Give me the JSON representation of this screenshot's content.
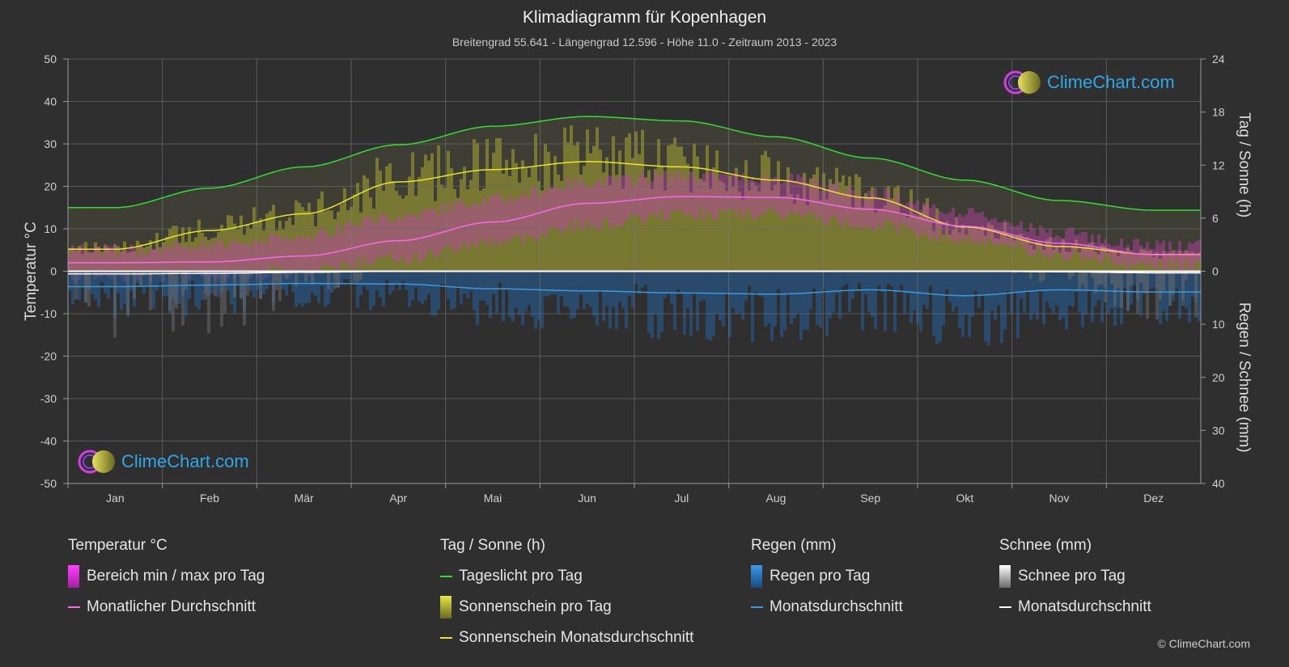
{
  "title": "Klimadiagramm für Kopenhagen",
  "subtitle": "Breitengrad 55.641 - Längengrad 12.596 - Höhe 11.0 - Zeitraum 2013 - 2023",
  "logo_text": "ClimeChart.com",
  "copyright": "© ClimeChart.com",
  "legend": {
    "temperature": {
      "heading": "Temperatur °C",
      "range": "Bereich min / max pro Tag",
      "avg": "Monatlicher Durchschnitt"
    },
    "sun": {
      "heading": "Tag / Sonne (h)",
      "daylight": "Tageslicht pro Tag",
      "sunshine": "Sonnenschein pro Tag",
      "sunshine_avg": "Sonnenschein Monatsdurchschnitt"
    },
    "rain": {
      "heading": "Regen (mm)",
      "per_day": "Regen pro Tag",
      "avg": "Monatsdurchschnitt"
    },
    "snow": {
      "heading": "Schnee (mm)",
      "per_day": "Schnee pro Tag",
      "avg": "Monatsdurchschnitt"
    }
  },
  "colors": {
    "background": "#2f2f2f",
    "daylight": "#33dd33",
    "sunshine_avg": "#e6e62a",
    "sunshine_fill": "#8a8a30",
    "temp_avg": "#ff66ee",
    "temp_range": "#c040b0",
    "rain": "#2a7fd0",
    "rain_avg": "#3a9ae0",
    "snow": "#9a9a9a",
    "snow_avg": "#ffffff"
  },
  "chart_data": {
    "type": "line",
    "categories": [
      "Jan",
      "Feb",
      "Mär",
      "Apr",
      "Mai",
      "Jun",
      "Jul",
      "Aug",
      "Sep",
      "Okt",
      "Nov",
      "Dez"
    ],
    "y_left": {
      "label": "Temperatur °C",
      "ylim": [
        -50,
        50
      ],
      "ticks": [
        50,
        40,
        30,
        20,
        10,
        0,
        -10,
        -20,
        -30,
        -40,
        -50
      ]
    },
    "y_right_top": {
      "label": "Tag / Sonne (h)",
      "ylim": [
        0,
        24
      ],
      "ticks": [
        24,
        18,
        12,
        6,
        0
      ]
    },
    "y_right_bottom": {
      "label": "Regen / Schnee (mm)",
      "ylim": [
        0,
        40
      ],
      "ticks": [
        0,
        10,
        20,
        30,
        40
      ]
    },
    "grid": true,
    "series": [
      {
        "name": "Tageslicht pro Tag",
        "axis": "hours",
        "values": [
          7.2,
          9.4,
          11.8,
          14.3,
          16.4,
          17.5,
          17.0,
          15.2,
          12.8,
          10.3,
          8.0,
          6.9
        ]
      },
      {
        "name": "Sonnenschein Monatsdurchschnitt",
        "axis": "hours",
        "values": [
          2.5,
          4.6,
          6.5,
          10.1,
          11.5,
          12.4,
          11.8,
          10.3,
          8.3,
          5.0,
          2.8,
          1.9
        ]
      },
      {
        "name": "Monatlicher Durchschnitt",
        "axis": "temp",
        "values": [
          2.0,
          2.2,
          3.6,
          7.2,
          11.6,
          16.0,
          17.6,
          17.4,
          14.6,
          10.6,
          6.6,
          3.9
        ]
      },
      {
        "name": "Regen Monatsdurchschnitt",
        "axis": "mm",
        "values": [
          2.9,
          2.6,
          2.3,
          2.4,
          3.3,
          3.7,
          4.1,
          4.3,
          3.5,
          4.6,
          3.5,
          3.9
        ]
      },
      {
        "name": "Schnee Monatsdurchschnitt",
        "axis": "mm",
        "values": [
          0.5,
          0.4,
          0.2,
          0.0,
          0.0,
          0.0,
          0.0,
          0.0,
          0.0,
          0.0,
          0.1,
          0.3
        ]
      }
    ],
    "temp_range_daily": {
      "min": [
        -1.0,
        -1.0,
        0.0,
        3.0,
        7.0,
        11.0,
        13.5,
        13.5,
        11.0,
        7.5,
        4.0,
        1.0
      ],
      "max": [
        5.0,
        6.0,
        8.5,
        13.0,
        17.0,
        21.0,
        22.5,
        22.0,
        18.5,
        13.5,
        9.0,
        6.0
      ]
    }
  }
}
